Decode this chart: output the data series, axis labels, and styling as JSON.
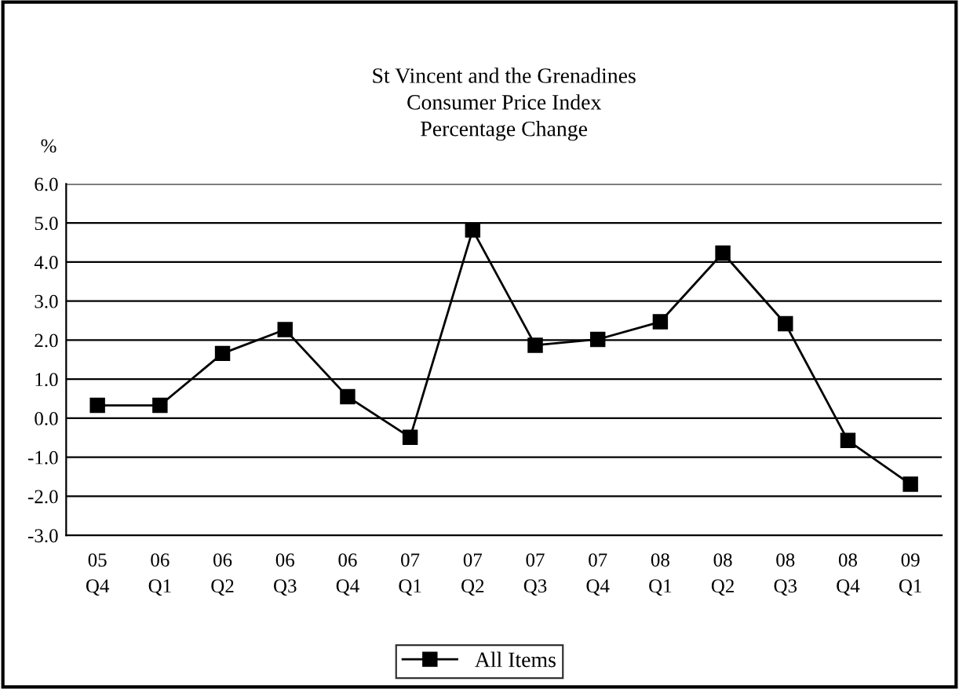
{
  "chart_data": {
    "type": "line",
    "title": "St Vincent and the Grenadines\nConsumer Price Index\nPercentage Change",
    "ylabel": "%",
    "categories": [
      "05\nQ4",
      "06\nQ1",
      "06\nQ2",
      "06\nQ3",
      "06\nQ4",
      "07\nQ1",
      "07\nQ2",
      "07\nQ3",
      "07\nQ4",
      "08\nQ1",
      "08\nQ2",
      "08\nQ3",
      "08\nQ4",
      "09\nQ1"
    ],
    "series": [
      {
        "name": "All Items",
        "color": "#000000",
        "values": [
          0.33,
          0.33,
          1.66,
          2.27,
          0.55,
          -0.49,
          4.82,
          1.87,
          2.02,
          2.47,
          4.23,
          2.42,
          -0.57,
          -1.69
        ]
      }
    ],
    "ylim": [
      -3.0,
      6.0
    ],
    "yticks": [
      {
        "value": -3,
        "label": "-3.0"
      },
      {
        "value": -2,
        "label": "-2.0"
      },
      {
        "value": -1,
        "label": "-1.0"
      },
      {
        "value": 0,
        "label": "0.0"
      },
      {
        "value": 1,
        "label": "1.0"
      },
      {
        "value": 2,
        "label": "2.0"
      },
      {
        "value": 3,
        "label": "3.0"
      },
      {
        "value": 4,
        "label": "4.0"
      },
      {
        "value": 5,
        "label": "5.0"
      },
      {
        "value": 6,
        "label": "6.0"
      }
    ],
    "grid": "y",
    "legend": "bottom",
    "marker": "square",
    "line_style": "solid"
  }
}
